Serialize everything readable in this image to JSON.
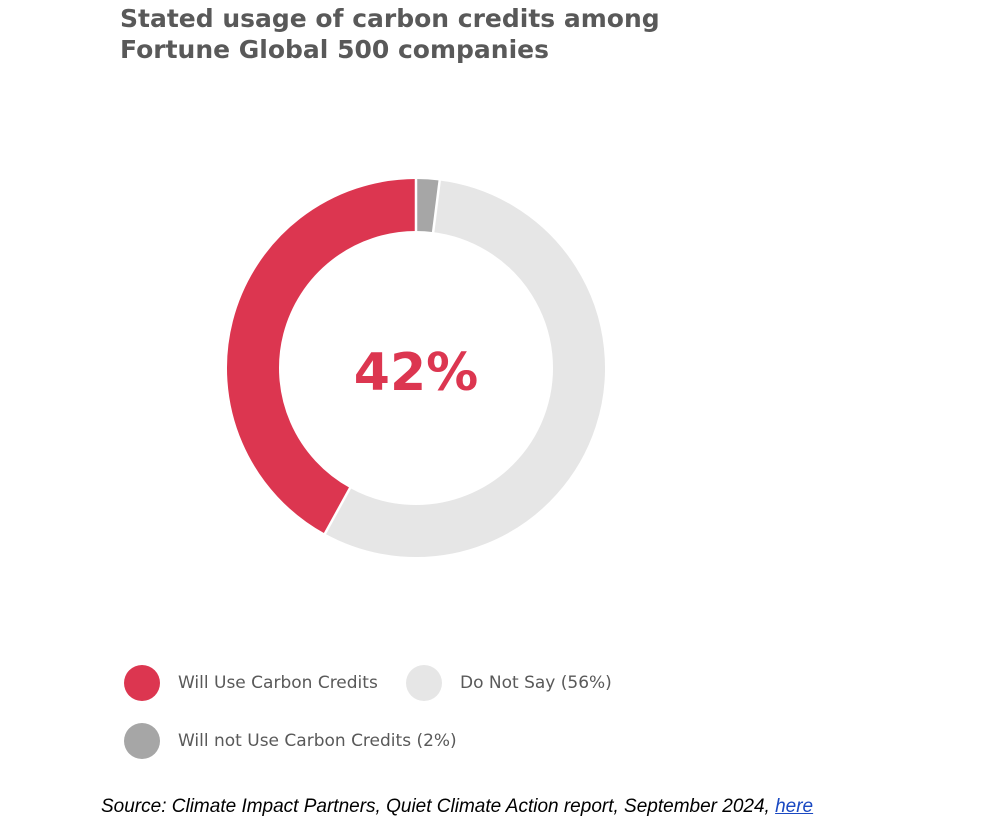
{
  "chart_data": {
    "type": "pie",
    "variant": "donut",
    "title": "Stated usage of carbon credits among",
    "title_line2": "Fortune Global 500 companies",
    "center_label": "42%",
    "slices": [
      {
        "label": "Will Use Carbon Credits",
        "value": 42,
        "color": "#dc3650"
      },
      {
        "label": "Will not Use Carbon Credits (2%)",
        "value": 2,
        "color": "#a6a6a6"
      },
      {
        "label": "Do Not Say (56%)",
        "value": 56,
        "color": "#e6e6e6"
      }
    ],
    "legend_position": "bottom"
  },
  "legend": [
    {
      "label": "Will Use Carbon Credits",
      "color": "#dc3650"
    },
    {
      "label": "Do Not Say (56%)",
      "color": "#e6e6e6"
    },
    {
      "label": "Will not Use Carbon Credits (2%)",
      "color": "#a6a6a6"
    }
  ],
  "source": {
    "text": "Source: Climate Impact Partners, Quiet Climate Action report, September 2024, ",
    "link_text": "here"
  }
}
